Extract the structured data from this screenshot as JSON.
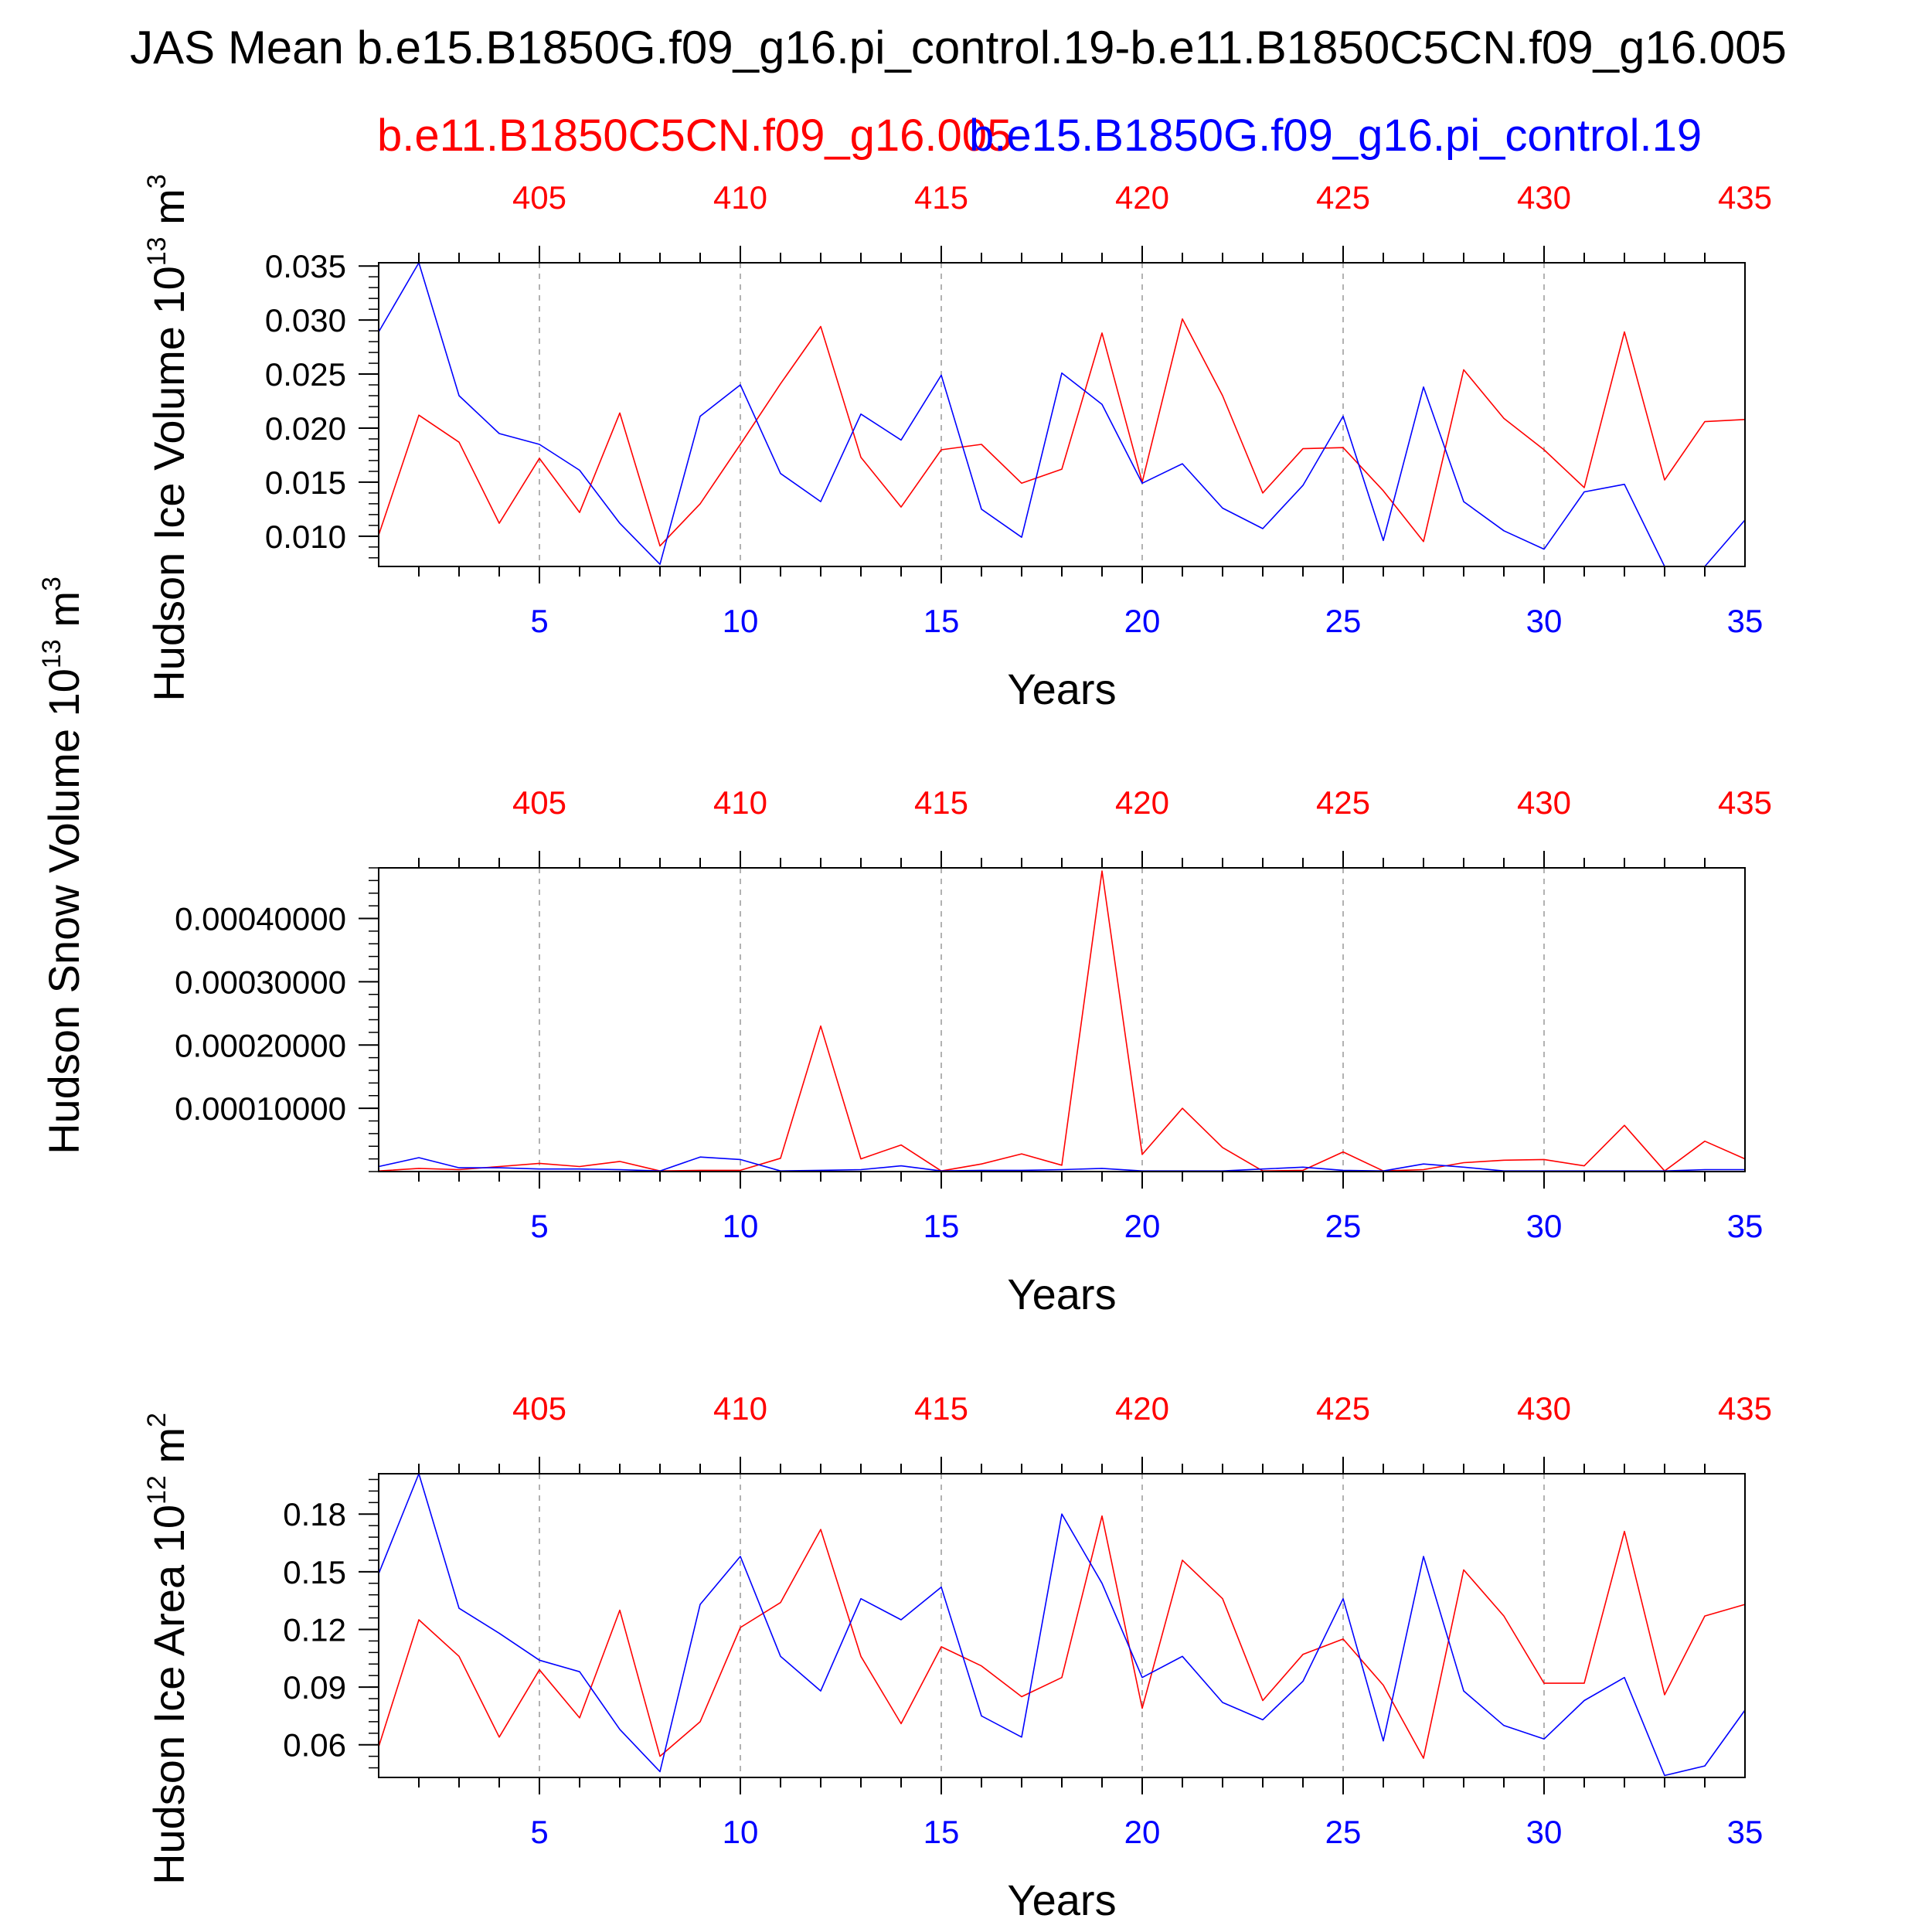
{
  "title": "JAS Mean b.e15.B1850G.f09_g16.pi_control.19-b.e11.B1850C5CN.f09_g16.005",
  "legend": {
    "red_label": "b.e11.B1850C5CN.f09_g16.005",
    "blue_label": "b.e15.B1850G.f09_g16.pi_control.19"
  },
  "colors": {
    "red": "#ff0000",
    "blue": "#0000ff",
    "axis": "#000000",
    "grid": "#999999"
  },
  "chart_data": [
    {
      "type": "line",
      "ylabel": "Hudson Ice Volume 10",
      "ylabel_exp": "13",
      "ylabel_unit": " m",
      "ylabel_unit_exp": "3",
      "xlabel": "Years",
      "xlim": [
        1,
        35
      ],
      "ylim": [
        0.0072,
        0.0353
      ],
      "bottom_ticks": [
        5,
        10,
        15,
        20,
        25,
        30,
        35
      ],
      "top_ticks": [
        "405",
        "410",
        "415",
        "420",
        "425",
        "430",
        "435"
      ],
      "ytick_values": [
        0.01,
        0.015,
        0.02,
        0.025,
        0.03,
        0.035
      ],
      "ytick_labels": [
        "0.010",
        "0.015",
        "0.020",
        "0.025",
        "0.030",
        "0.035"
      ],
      "series": [
        {
          "color": "red",
          "values": [
            0.0101,
            0.0212,
            0.0187,
            0.0112,
            0.0172,
            0.0122,
            0.0214,
            0.0091,
            0.013,
            0.0185,
            0.0241,
            0.0294,
            0.0173,
            0.0127,
            0.018,
            0.0185,
            0.0149,
            0.0162,
            0.0288,
            0.015,
            0.0301,
            0.023,
            0.014,
            0.0181,
            0.0182,
            0.0142,
            0.0095,
            0.0254,
            0.0209,
            0.018,
            0.0145,
            0.0289,
            0.0152,
            0.0206,
            0.0208
          ]
        },
        {
          "color": "blue",
          "values": [
            0.0289,
            0.0353,
            0.023,
            0.0195,
            0.0185,
            0.0161,
            0.0112,
            0.0074,
            0.0211,
            0.024,
            0.0158,
            0.0132,
            0.0213,
            0.0189,
            0.0249,
            0.0125,
            0.0099,
            0.0251,
            0.0222,
            0.0149,
            0.0167,
            0.0126,
            0.0107,
            0.0147,
            0.0211,
            0.0096,
            0.0238,
            0.0132,
            0.0105,
            0.0088,
            0.0141,
            0.0148,
            0.0072,
            0.0072,
            0.0115
          ]
        }
      ]
    },
    {
      "type": "line",
      "ylabel": "Hudson Snow Volume 10",
      "ylabel_exp": "13",
      "ylabel_unit": " m",
      "ylabel_unit_exp": "3",
      "xlabel": "Years",
      "xlim": [
        1,
        35
      ],
      "ylim": [
        0,
        0.00048
      ],
      "bottom_ticks": [
        5,
        10,
        15,
        20,
        25,
        30,
        35
      ],
      "top_ticks": [
        "405",
        "410",
        "415",
        "420",
        "425",
        "430",
        "435"
      ],
      "ytick_values": [
        0.0001,
        0.0002,
        0.0003,
        0.0004
      ],
      "ytick_labels": [
        "0.00010000",
        "0.00020000",
        "0.00030000",
        "0.00040000"
      ],
      "series": [
        {
          "color": "red",
          "values": [
            1e-06,
            5e-06,
            3e-06,
            8e-06,
            1.3e-05,
            8e-06,
            1.6e-05,
            1e-06,
            2e-06,
            2e-06,
            2.1e-05,
            0.00023,
            2e-05,
            4.2e-05,
            1e-06,
            1.2e-05,
            2.8e-05,
            1e-05,
            0.000475,
            2.7e-05,
            0.0001,
            3.8e-05,
            1e-06,
            2e-06,
            3.1e-05,
            1e-06,
            3e-06,
            1.4e-05,
            1.8e-05,
            1.9e-05,
            9e-06,
            7.3e-05,
            1e-06,
            4.8e-05,
            2e-05
          ]
        },
        {
          "color": "blue",
          "values": [
            8e-06,
            2.2e-05,
            6e-06,
            6e-06,
            4e-06,
            4e-06,
            3e-06,
            1e-06,
            2.3e-05,
            1.9e-05,
            1e-06,
            2e-06,
            3e-06,
            9e-06,
            1e-06,
            2e-06,
            2e-06,
            3e-06,
            5e-06,
            1e-06,
            1e-06,
            1e-06,
            4e-06,
            7e-06,
            2e-06,
            1e-06,
            1.2e-05,
            7e-06,
            1e-06,
            1e-06,
            1e-06,
            1e-06,
            1e-06,
            3e-06,
            3e-06
          ]
        }
      ]
    },
    {
      "type": "line",
      "ylabel": "Hudson Ice Area 10",
      "ylabel_exp": "12",
      "ylabel_unit": " m",
      "ylabel_unit_exp": "2",
      "xlabel": "Years",
      "xlim": [
        1,
        35
      ],
      "ylim": [
        0.043,
        0.201
      ],
      "bottom_ticks": [
        5,
        10,
        15,
        20,
        25,
        30,
        35
      ],
      "top_ticks": [
        "405",
        "410",
        "415",
        "420",
        "425",
        "430",
        "435"
      ],
      "ytick_values": [
        0.06,
        0.09,
        0.12,
        0.15,
        0.18
      ],
      "ytick_labels": [
        "0.06",
        "0.09",
        "0.12",
        "0.15",
        "0.18"
      ],
      "series": [
        {
          "color": "red",
          "values": [
            0.059,
            0.125,
            0.106,
            0.064,
            0.099,
            0.074,
            0.13,
            0.054,
            0.072,
            0.121,
            0.134,
            0.172,
            0.106,
            0.071,
            0.111,
            0.101,
            0.085,
            0.095,
            0.179,
            0.079,
            0.156,
            0.136,
            0.083,
            0.107,
            0.115,
            0.091,
            0.053,
            0.151,
            0.127,
            0.092,
            0.092,
            0.171,
            0.086,
            0.127,
            0.133
          ]
        },
        {
          "color": "blue",
          "values": [
            0.149,
            0.201,
            0.131,
            0.118,
            0.104,
            0.098,
            0.068,
            0.046,
            0.133,
            0.158,
            0.106,
            0.088,
            0.136,
            0.125,
            0.142,
            0.075,
            0.064,
            0.18,
            0.144,
            0.095,
            0.106,
            0.082,
            0.073,
            0.093,
            0.136,
            0.062,
            0.158,
            0.088,
            0.07,
            0.063,
            0.083,
            0.095,
            0.044,
            0.049,
            0.078
          ]
        }
      ]
    }
  ]
}
